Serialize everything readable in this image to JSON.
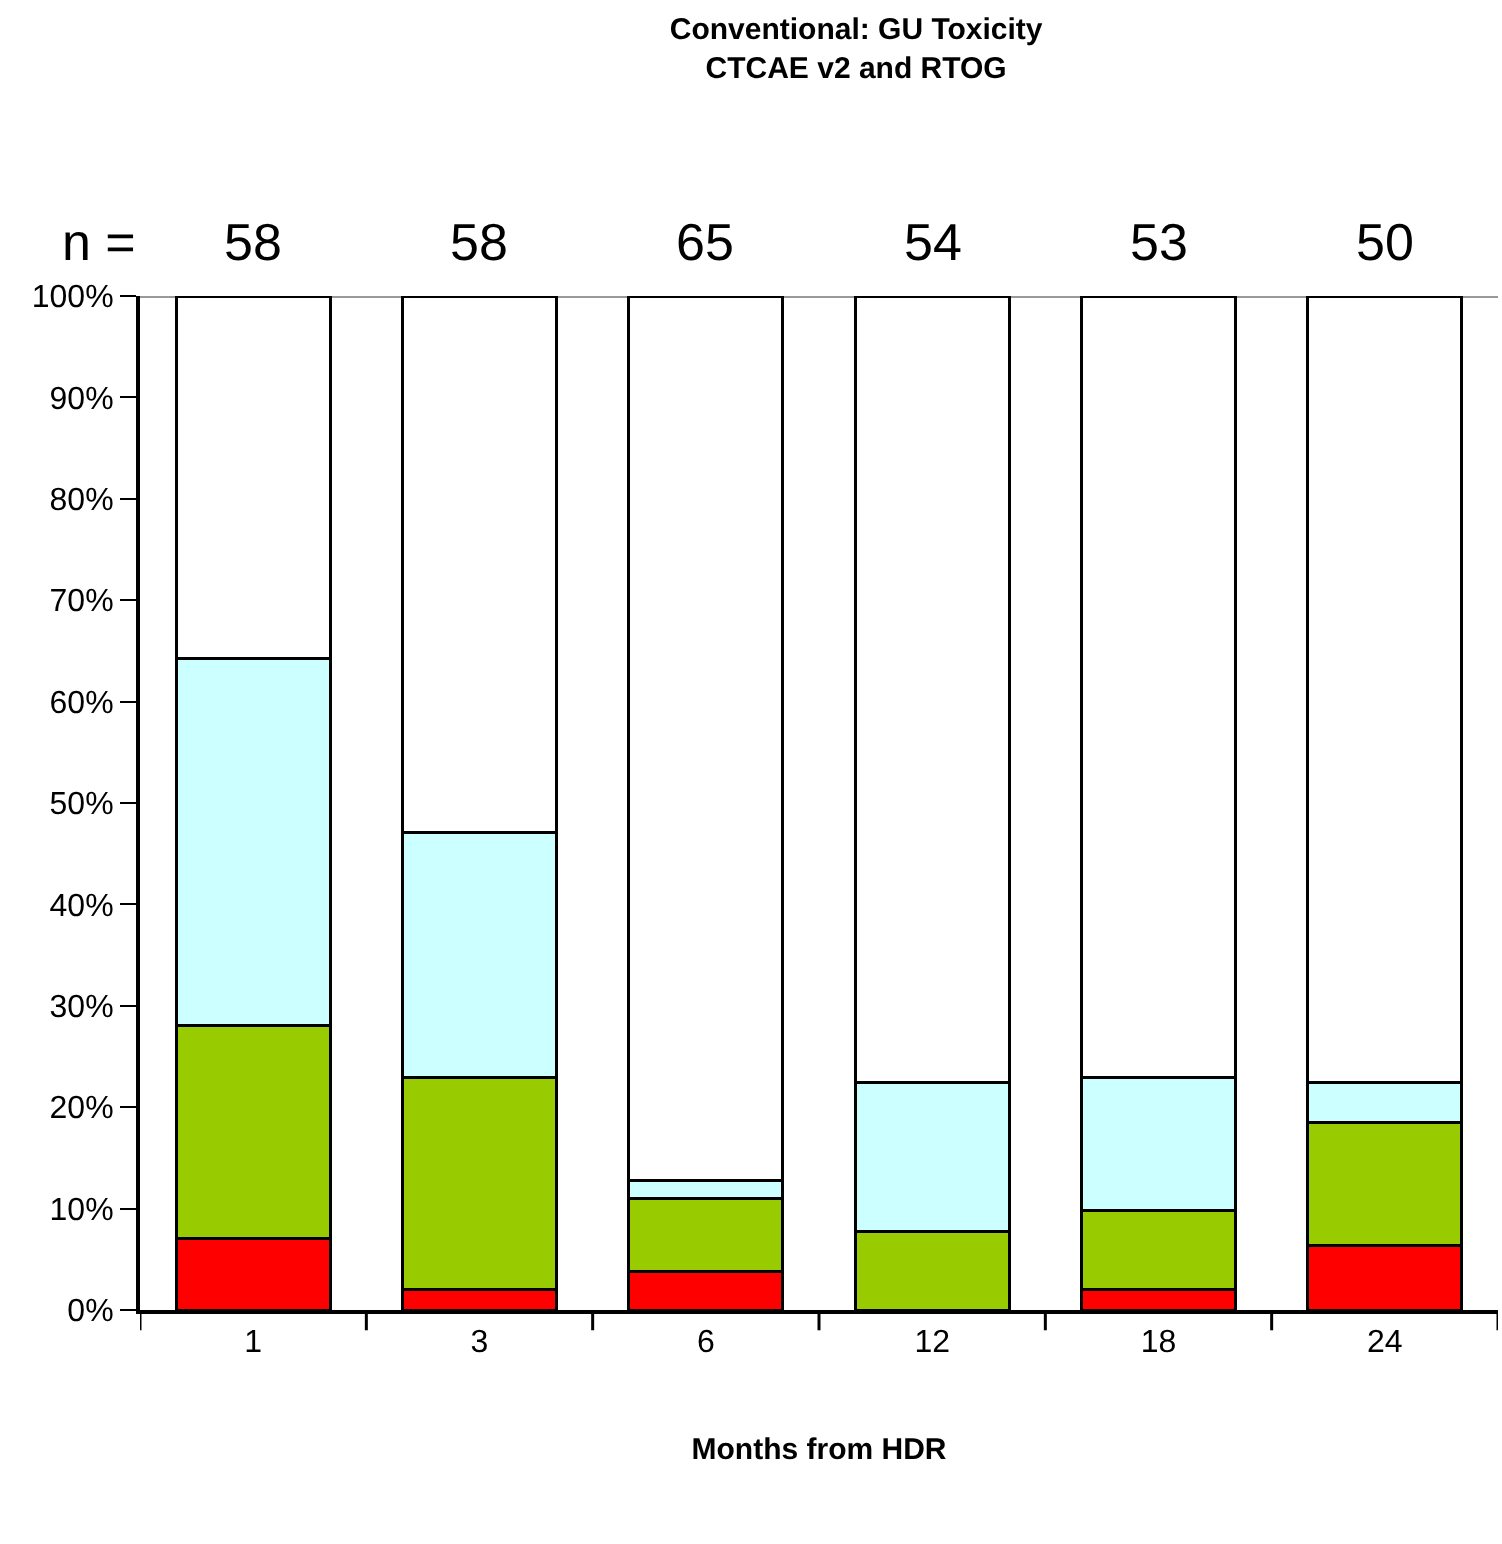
{
  "chart_data": {
    "type": "bar",
    "title": "Conventional: GU Toxicity\nCTCAE v2 and RTOG",
    "xlabel": "Months from HDR",
    "categories": [
      "1",
      "3",
      "6",
      "12",
      "18",
      "24"
    ],
    "stacked": true,
    "series": [
      {
        "color": "#ff0000",
        "values": [
          7.1,
          2,
          3.8,
          0,
          2,
          6.4
        ]
      },
      {
        "color": "#99cc00",
        "values": [
          21,
          20.9,
          7.2,
          7.7,
          7.8,
          12.1
        ]
      },
      {
        "color": "#ccffff",
        "values": [
          36.2,
          24.2,
          1.8,
          14.7,
          13.1,
          3.9
        ]
      },
      {
        "color": "#ffffff",
        "values": [
          35.7,
          52.9,
          87.2,
          77.6,
          77.1,
          77.6
        ]
      }
    ],
    "ylim": [
      0,
      100
    ],
    "yticks": [
      {
        "value": 0,
        "label": "0%"
      },
      {
        "value": 10,
        "label": "10%"
      },
      {
        "value": 20,
        "label": "20%"
      },
      {
        "value": 30,
        "label": "30%"
      },
      {
        "value": 40,
        "label": "40%"
      },
      {
        "value": 50,
        "label": "50%"
      },
      {
        "value": 60,
        "label": "60%"
      },
      {
        "value": 70,
        "label": "70%"
      },
      {
        "value": 80,
        "label": "80%"
      },
      {
        "value": 90,
        "label": "90%"
      },
      {
        "value": 100,
        "label": "100%"
      }
    ],
    "ref_lines": [
      {
        "axis": "y",
        "value": 100,
        "color": "#999999"
      }
    ],
    "annotations": [
      "n =",
      "58",
      "58",
      "65",
      "54",
      "53",
      "50"
    ]
  }
}
